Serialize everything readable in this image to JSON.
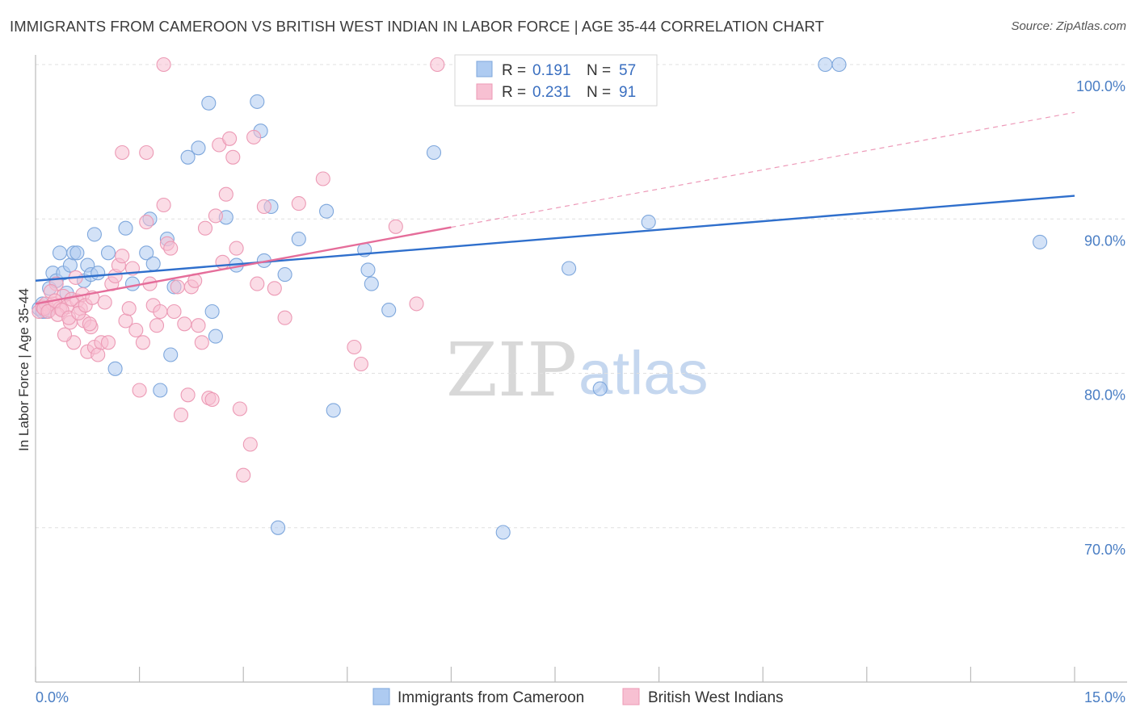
{
  "header": {
    "title": "IMMIGRANTS FROM CAMEROON VS BRITISH WEST INDIAN IN LABOR FORCE | AGE 35-44 CORRELATION CHART",
    "source": "Source: ZipAtlas.com"
  },
  "watermark": {
    "zip": "ZIP",
    "atlas": "atlas"
  },
  "chart_data": {
    "type": "scatter",
    "title": "IMMIGRANTS FROM CAMEROON VS BRITISH WEST INDIAN IN LABOR FORCE | AGE 35-44 CORRELATION CHART",
    "ylabel": "In Labor Force | Age 35-44",
    "xlabel": "",
    "xlim": [
      0,
      15
    ],
    "ylim": [
      60,
      100
    ],
    "x_tick_labels": [
      "0.0%",
      "15.0%"
    ],
    "y_tick_values": [
      70,
      80,
      90,
      100
    ],
    "y_tick_labels": [
      "70.0%",
      "80.0%",
      "90.0%",
      "100.0%"
    ],
    "grid": true,
    "legend_position": "top-center",
    "colors": {
      "blue_fill": "#aecbf1",
      "blue_stroke": "#7ea7dc",
      "blue_line": "#2f6fcc",
      "pink_fill": "#f7c0d2",
      "pink_stroke": "#ec9ab5",
      "pink_line": "#e56d9a",
      "value_text": "#3a6fc0",
      "grid": "#e0e0e0"
    },
    "legend": [
      {
        "r_label": "R =",
        "r_value": "0.191",
        "n_label": "N =",
        "n_value": "57"
      },
      {
        "r_label": "R =",
        "r_value": "0.231",
        "n_label": "N =",
        "n_value": "91"
      }
    ],
    "series": [
      {
        "name": "Immigrants from Cameroon",
        "color": "blue",
        "trend": {
          "x0": 0.0,
          "y0": 86.0,
          "x1": 15.0,
          "y1": 91.5,
          "dashed_from_x": null
        },
        "points": [
          [
            0.05,
            84.2
          ],
          [
            0.1,
            84.5
          ],
          [
            0.15,
            84.0
          ],
          [
            0.2,
            85.5
          ],
          [
            0.25,
            86.5
          ],
          [
            0.3,
            86.0
          ],
          [
            0.35,
            87.8
          ],
          [
            0.4,
            86.5
          ],
          [
            0.45,
            85.2
          ],
          [
            0.5,
            87.0
          ],
          [
            0.55,
            87.8
          ],
          [
            0.6,
            87.8
          ],
          [
            0.7,
            86.0
          ],
          [
            0.75,
            87.0
          ],
          [
            0.8,
            86.4
          ],
          [
            0.85,
            89.0
          ],
          [
            0.9,
            86.5
          ],
          [
            1.05,
            87.8
          ],
          [
            1.15,
            80.3
          ],
          [
            1.3,
            89.4
          ],
          [
            1.4,
            85.8
          ],
          [
            1.6,
            87.8
          ],
          [
            1.65,
            90.0
          ],
          [
            1.7,
            87.1
          ],
          [
            1.9,
            88.7
          ],
          [
            1.95,
            81.2
          ],
          [
            1.8,
            78.9
          ],
          [
            2.0,
            85.6
          ],
          [
            2.2,
            94.0
          ],
          [
            2.35,
            94.6
          ],
          [
            2.5,
            97.5
          ],
          [
            2.55,
            84.0
          ],
          [
            2.6,
            82.4
          ],
          [
            2.75,
            90.1
          ],
          [
            2.9,
            87.0
          ],
          [
            3.2,
            97.6
          ],
          [
            3.25,
            95.7
          ],
          [
            3.3,
            87.3
          ],
          [
            3.4,
            90.8
          ],
          [
            3.5,
            70.0
          ],
          [
            3.6,
            86.4
          ],
          [
            3.8,
            88.7
          ],
          [
            4.2,
            90.5
          ],
          [
            4.3,
            77.6
          ],
          [
            4.75,
            88.0
          ],
          [
            4.8,
            86.7
          ],
          [
            4.85,
            85.8
          ],
          [
            5.1,
            84.1
          ],
          [
            5.75,
            94.3
          ],
          [
            6.75,
            69.7
          ],
          [
            7.7,
            86.8
          ],
          [
            8.15,
            79.0
          ],
          [
            8.85,
            89.8
          ],
          [
            11.4,
            100.0
          ],
          [
            11.6,
            100.0
          ],
          [
            14.5,
            88.5
          ],
          [
            0.1,
            84.0
          ]
        ]
      },
      {
        "name": "British West Indians",
        "color": "pink",
        "trend": {
          "x0": 0.0,
          "y0": 84.5,
          "x1": 15.0,
          "y1": 96.9,
          "dashed_from_x": 6.0
        },
        "points": [
          [
            0.05,
            84.0
          ],
          [
            0.1,
            84.3
          ],
          [
            0.15,
            84.5
          ],
          [
            0.2,
            84.1
          ],
          [
            0.25,
            84.5
          ],
          [
            0.3,
            85.8
          ],
          [
            0.35,
            84.2
          ],
          [
            0.4,
            85.0
          ],
          [
            0.45,
            84.3
          ],
          [
            0.5,
            83.3
          ],
          [
            0.55,
            82.0
          ],
          [
            0.6,
            84.7
          ],
          [
            0.65,
            84.2
          ],
          [
            0.7,
            83.4
          ],
          [
            0.75,
            81.4
          ],
          [
            0.8,
            83.0
          ],
          [
            0.85,
            81.7
          ],
          [
            0.9,
            81.2
          ],
          [
            0.95,
            82.0
          ],
          [
            1.0,
            84.6
          ],
          [
            1.05,
            82.0
          ],
          [
            1.1,
            85.8
          ],
          [
            1.15,
            86.3
          ],
          [
            1.2,
            87.0
          ],
          [
            1.25,
            87.6
          ],
          [
            1.3,
            83.4
          ],
          [
            1.35,
            84.2
          ],
          [
            1.4,
            86.8
          ],
          [
            1.45,
            82.8
          ],
          [
            1.5,
            78.9
          ],
          [
            1.55,
            82.0
          ],
          [
            1.6,
            89.8
          ],
          [
            1.65,
            85.8
          ],
          [
            1.7,
            84.4
          ],
          [
            1.75,
            83.1
          ],
          [
            1.8,
            84.0
          ],
          [
            1.85,
            90.9
          ],
          [
            1.9,
            88.4
          ],
          [
            1.95,
            88.1
          ],
          [
            2.0,
            84.0
          ],
          [
            2.05,
            85.6
          ],
          [
            2.1,
            77.3
          ],
          [
            2.15,
            83.2
          ],
          [
            2.2,
            78.6
          ],
          [
            2.25,
            85.6
          ],
          [
            1.25,
            94.3
          ],
          [
            1.6,
            94.3
          ],
          [
            2.3,
            86.0
          ],
          [
            2.35,
            83.1
          ],
          [
            2.4,
            82.0
          ],
          [
            2.45,
            89.4
          ],
          [
            2.5,
            78.4
          ],
          [
            2.55,
            78.3
          ],
          [
            2.6,
            90.2
          ],
          [
            2.65,
            94.8
          ],
          [
            2.7,
            87.2
          ],
          [
            2.75,
            91.6
          ],
          [
            2.8,
            95.2
          ],
          [
            2.85,
            94.0
          ],
          [
            2.9,
            88.1
          ],
          [
            2.95,
            77.7
          ],
          [
            3.0,
            73.4
          ],
          [
            3.1,
            75.4
          ],
          [
            3.15,
            95.3
          ],
          [
            3.2,
            85.8
          ],
          [
            3.3,
            90.8
          ],
          [
            3.45,
            85.5
          ],
          [
            3.6,
            83.6
          ],
          [
            3.8,
            91.0
          ],
          [
            4.15,
            92.6
          ],
          [
            4.6,
            81.7
          ],
          [
            4.7,
            80.6
          ],
          [
            5.2,
            89.5
          ],
          [
            5.5,
            84.5
          ],
          [
            1.85,
            100.0
          ],
          [
            5.8,
            100.0
          ],
          [
            0.12,
            84.2
          ],
          [
            0.18,
            84.0
          ],
          [
            0.22,
            85.3
          ],
          [
            0.28,
            84.7
          ],
          [
            0.32,
            83.8
          ],
          [
            0.38,
            84.1
          ],
          [
            0.42,
            82.5
          ],
          [
            0.48,
            83.6
          ],
          [
            0.52,
            84.8
          ],
          [
            0.58,
            86.2
          ],
          [
            0.62,
            83.9
          ],
          [
            0.68,
            85.1
          ],
          [
            0.72,
            84.4
          ],
          [
            0.78,
            83.2
          ],
          [
            0.82,
            84.9
          ]
        ]
      }
    ]
  },
  "bottom_legend": [
    {
      "label": "Immigrants from Cameroon",
      "color": "blue"
    },
    {
      "label": "British West Indians",
      "color": "pink"
    }
  ]
}
